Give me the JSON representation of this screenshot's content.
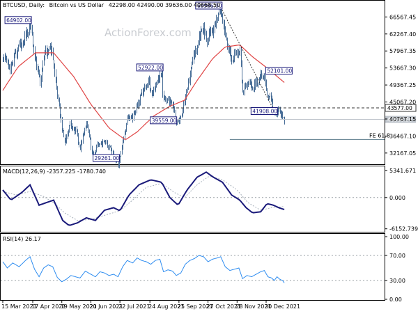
{
  "header": {
    "symbol": "BTCUSD, Daily:",
    "description": "Bitcoin vs US Dollar",
    "ohlc": "42298.00 42490.00 39636.00 40668.50"
  },
  "watermark": "ActionForex.com",
  "colors": {
    "bars": "#4a6f98",
    "moving_average": "#e04545",
    "macd_main": "#1a1a7a",
    "macd_signal": "#a9b2bd",
    "rsi": "#2d8cf0",
    "callout": "#1a1a7a",
    "fib_level": "#5a7a8a"
  },
  "chart_data": [
    {
      "type": "bar",
      "title": "BTCUSD, Daily: Bitcoin vs US Dollar 42298.00 42490.00 39636.00 40668.50",
      "x_ticks": [
        "15 Mar 2021",
        "17 Apr 2021",
        "19 May 2021",
        "20 Jun 2021",
        "22 Jul 2021",
        "24 Aug 2021",
        "25 Sep 2021",
        "27 Oct 2021",
        "28 Nov 2021",
        "30 Dec 2021"
      ],
      "y_ticks": [
        "66567.45",
        "62267.40",
        "57967.35",
        "53667.30",
        "49367.25",
        "45067.20",
        "40767.15",
        "36467.10",
        "32167.05"
      ],
      "ylim": [
        29500,
        70500
      ],
      "price_path": [
        [
          "15 Mar 2021",
          56000
        ],
        [
          "23 Mar 2021",
          54000
        ],
        [
          "01 Apr 2021",
          58500
        ],
        [
          "13 Apr 2021",
          63500
        ],
        [
          "14 Apr 2021",
          64902
        ],
        [
          "20 Apr 2021",
          55500
        ],
        [
          "25 Apr 2021",
          50000
        ],
        [
          "30 Apr 2021",
          57500
        ],
        [
          "08 May 2021",
          58500
        ],
        [
          "12 May 2021",
          50500
        ],
        [
          "19 May 2021",
          38500
        ],
        [
          "23 May 2021",
          34500
        ],
        [
          "27 May 2021",
          39500
        ],
        [
          "03 Jun 2021",
          38000
        ],
        [
          "08 Jun 2021",
          33500
        ],
        [
          "15 Jun 2021",
          40000
        ],
        [
          "22 Jun 2021",
          31500
        ],
        [
          "28 Jun 2021",
          34500
        ],
        [
          "05 Jul 2021",
          35000
        ],
        [
          "12 Jul 2021",
          33000
        ],
        [
          "20 Jul 2021",
          29261
        ],
        [
          "25 Jul 2021",
          35000
        ],
        [
          "31 Jul 2021",
          41500
        ],
        [
          "05 Aug 2021",
          41000
        ],
        [
          "14 Aug 2021",
          47000
        ],
        [
          "23 Aug 2021",
          50000
        ],
        [
          "26 Aug 2021",
          47000
        ],
        [
          "06 Sep 2021",
          52922
        ],
        [
          "07 Sep 2021",
          46500
        ],
        [
          "12 Sep 2021",
          46000
        ],
        [
          "20 Sep 2021",
          43000
        ],
        [
          "21 Sep 2021",
          39559
        ],
        [
          "28 Sep 2021",
          41500
        ],
        [
          "04 Oct 2021",
          48500
        ],
        [
          "10 Oct 2021",
          55500
        ],
        [
          "20 Oct 2021",
          64000
        ],
        [
          "26 Oct 2021",
          61000
        ],
        [
          "02 Nov 2021",
          63500
        ],
        [
          "10 Nov 2021",
          68986
        ],
        [
          "16 Nov 2021",
          60500
        ],
        [
          "22 Nov 2021",
          56000
        ],
        [
          "28 Nov 2021",
          57500
        ],
        [
          "01 Dec 2021",
          58000
        ],
        [
          "04 Dec 2021",
          48000
        ],
        [
          "09 Dec 2021",
          50000
        ],
        [
          "15 Dec 2021",
          48500
        ],
        [
          "23 Dec 2021",
          51500
        ],
        [
          "28 Dec 2021",
          52101
        ],
        [
          "31 Dec 2021",
          46500
        ],
        [
          "04 Jan 2022",
          46500
        ],
        [
          "06 Jan 2022",
          43000
        ],
        [
          "10 Jan 2022",
          41908
        ],
        [
          "12 Jan 2022",
          43500
        ],
        [
          "14 Jan 2022",
          42200
        ],
        [
          "17 Jan 2022",
          41800
        ],
        [
          "19 Jan 2022",
          40668.5
        ]
      ],
      "moving_average": [
        [
          "15 Mar 2021",
          48000
        ],
        [
          "01 Apr 2021",
          54000
        ],
        [
          "20 Apr 2021",
          57500
        ],
        [
          "10 May 2021",
          57500
        ],
        [
          "01 Jun 2021",
          51500
        ],
        [
          "20 Jun 2021",
          44500
        ],
        [
          "10 Jul 2021",
          38500
        ],
        [
          "28 Jul 2021",
          35500
        ],
        [
          "10 Aug 2021",
          37500
        ],
        [
          "28 Aug 2021",
          41500
        ],
        [
          "15 Sep 2021",
          44000
        ],
        [
          "01 Oct 2021",
          45500
        ],
        [
          "15 Oct 2021",
          50500
        ],
        [
          "01 Nov 2021",
          56000
        ],
        [
          "15 Nov 2021",
          59000
        ],
        [
          "01 Dec 2021",
          59500
        ],
        [
          "15 Dec 2021",
          56500
        ],
        [
          "01 Jan 2022",
          53500
        ],
        [
          "19 Jan 2022",
          50000
        ]
      ],
      "annotations": [
        {
          "label": "64902.00",
          "x": "14 Apr 2021",
          "y": 64902,
          "side": "left"
        },
        {
          "label": "29261.00",
          "x": "20 Jul 2021",
          "y": 29261,
          "side": "left"
        },
        {
          "label": "52922.00",
          "x": "06 Sep 2021",
          "y": 52922,
          "side": "left"
        },
        {
          "label": "39559.00",
          "x": "21 Sep 2021",
          "y": 39559,
          "side": "left"
        },
        {
          "label": "68986.00",
          "x": "10 Nov 2021",
          "y": 68986,
          "side": "left"
        },
        {
          "label": "41908.00",
          "x": "10 Jan 2022",
          "y": 41908,
          "side": "left"
        },
        {
          "label": "52101.00",
          "x": "28 Dec 2021",
          "y": 52101,
          "side": "right"
        }
      ],
      "horizontal_levels": [
        {
          "value": 43577.0,
          "label": "43577.00",
          "style": "dashed"
        },
        {
          "value": 40668.5,
          "label": "40668.50",
          "style": "solid"
        },
        {
          "value": 35600,
          "label": "FE 61.8",
          "style": "segment",
          "x_from": "20 Nov 2021"
        }
      ],
      "trendline": [
        [
          "10 Nov 2021",
          68986
        ],
        [
          "10 Jan 2022",
          41908
        ]
      ]
    },
    {
      "type": "line",
      "title": "MACD(12,26,9) -2357.225 -1780.740",
      "y_ticks": [
        "5341.671",
        "0.000",
        "-6152.739"
      ],
      "ylim": [
        -6600,
        6000
      ],
      "series": [
        {
          "values": [
            [
              "15 Mar 2021",
              1500
            ],
            [
              "24 Mar 2021",
              -500
            ],
            [
              "05 Apr 2021",
              1000
            ],
            [
              "14 Apr 2021",
              2500
            ],
            [
              "24 Apr 2021",
              -1500
            ],
            [
              "02 May 2021",
              -1000
            ],
            [
              "10 May 2021",
              -500
            ],
            [
              "20 May 2021",
              -4500
            ],
            [
              "27 May 2021",
              -5500
            ],
            [
              "05 Jun 2021",
              -5000
            ],
            [
              "15 Jun 2021",
              -4000
            ],
            [
              "25 Jun 2021",
              -4500
            ],
            [
              "05 Jul 2021",
              -2500
            ],
            [
              "15 Jul 2021",
              -2000
            ],
            [
              "22 Jul 2021",
              -2600
            ],
            [
              "01 Aug 2021",
              500
            ],
            [
              "12 Aug 2021",
              2500
            ],
            [
              "25 Aug 2021",
              3500
            ],
            [
              "06 Sep 2021",
              3000
            ],
            [
              "15 Sep 2021",
              0
            ],
            [
              "24 Sep 2021",
              -1500
            ],
            [
              "04 Oct 2021",
              1500
            ],
            [
              "15 Oct 2021",
              4000
            ],
            [
              "25 Oct 2021",
              5000
            ],
            [
              "02 Nov 2021",
              4000
            ],
            [
              "12 Nov 2021",
              3000
            ],
            [
              "22 Nov 2021",
              500
            ],
            [
              "01 Dec 2021",
              -500
            ],
            [
              "08 Dec 2021",
              -2000
            ],
            [
              "15 Dec 2021",
              -3000
            ],
            [
              "24 Dec 2021",
              -2800
            ],
            [
              "31 Dec 2021",
              -1200
            ],
            [
              "07 Jan 2022",
              -1500
            ],
            [
              "13 Jan 2022",
              -2000
            ],
            [
              "19 Jan 2022",
              -2357.225
            ]
          ]
        },
        {
          "values": [
            [
              "15 Mar 2021",
              1200
            ],
            [
              "30 Mar 2021",
              500
            ],
            [
              "14 Apr 2021",
              1200
            ],
            [
              "28 Apr 2021",
              300
            ],
            [
              "10 May 2021",
              -1000
            ],
            [
              "22 May 2021",
              -3000
            ],
            [
              "05 Jun 2021",
              -4500
            ],
            [
              "20 Jun 2021",
              -4300
            ],
            [
              "05 Jul 2021",
              -3500
            ],
            [
              "22 Jul 2021",
              -2600
            ],
            [
              "05 Aug 2021",
              -500
            ],
            [
              "20 Aug 2021",
              2000
            ],
            [
              "06 Sep 2021",
              2800
            ],
            [
              "20 Sep 2021",
              1000
            ],
            [
              "01 Oct 2021",
              0
            ],
            [
              "15 Oct 2021",
              2500
            ],
            [
              "28 Oct 2021",
              4200
            ],
            [
              "12 Nov 2021",
              3500
            ],
            [
              "28 Nov 2021",
              1500
            ],
            [
              "10 Dec 2021",
              -1000
            ],
            [
              "24 Dec 2021",
              -2500
            ],
            [
              "05 Jan 2022",
              -2000
            ],
            [
              "19 Jan 2022",
              -1780.74
            ]
          ]
        }
      ]
    },
    {
      "type": "line",
      "title": "RSI(14) 26.17",
      "y_ticks": [
        "100.00",
        "70.00",
        "30.00",
        "0.00"
      ],
      "ylim": [
        0,
        100
      ],
      "series": [
        {
          "values": [
            [
              "15 Mar 2021",
              60
            ],
            [
              "20 Mar 2021",
              50
            ],
            [
              "26 Mar 2021",
              58
            ],
            [
              "02 Apr 2021",
              52
            ],
            [
              "09 Apr 2021",
              62
            ],
            [
              "14 Apr 2021",
              68
            ],
            [
              "19 Apr 2021",
              48
            ],
            [
              "24 Apr 2021",
              36
            ],
            [
              "29 Apr 2021",
              50
            ],
            [
              "04 May 2021",
              55
            ],
            [
              "09 May 2021",
              52
            ],
            [
              "14 May 2021",
              35
            ],
            [
              "19 May 2021",
              28
            ],
            [
              "24 May 2021",
              32
            ],
            [
              "29 May 2021",
              38
            ],
            [
              "03 Jun 2021",
              36
            ],
            [
              "08 Jun 2021",
              34
            ],
            [
              "14 Jun 2021",
              45
            ],
            [
              "20 Jun 2021",
              40
            ],
            [
              "25 Jun 2021",
              36
            ],
            [
              "30 Jun 2021",
              44
            ],
            [
              "05 Jul 2021",
              42
            ],
            [
              "10 Jul 2021",
              38
            ],
            [
              "15 Jul 2021",
              40
            ],
            [
              "20 Jul 2021",
              36
            ],
            [
              "25 Jul 2021",
              52
            ],
            [
              "30 Jul 2021",
              62
            ],
            [
              "05 Aug 2021",
              58
            ],
            [
              "10 Aug 2021",
              66
            ],
            [
              "15 Aug 2021",
              62
            ],
            [
              "20 Aug 2021",
              60
            ],
            [
              "25 Aug 2021",
              56
            ],
            [
              "30 Aug 2021",
              62
            ],
            [
              "04 Sep 2021",
              64
            ],
            [
              "08 Sep 2021",
              44
            ],
            [
              "13 Sep 2021",
              47
            ],
            [
              "18 Sep 2021",
              45
            ],
            [
              "22 Sep 2021",
              38
            ],
            [
              "27 Sep 2021",
              42
            ],
            [
              "02 Oct 2021",
              56
            ],
            [
              "07 Oct 2021",
              62
            ],
            [
              "12 Oct 2021",
              65
            ],
            [
              "17 Oct 2021",
              70
            ],
            [
              "22 Oct 2021",
              68
            ],
            [
              "27 Oct 2021",
              60
            ],
            [
              "01 Nov 2021",
              64
            ],
            [
              "06 Nov 2021",
              66
            ],
            [
              "10 Nov 2021",
              68
            ],
            [
              "15 Nov 2021",
              52
            ],
            [
              "20 Nov 2021",
              46
            ],
            [
              "25 Nov 2021",
              48
            ],
            [
              "30 Nov 2021",
              50
            ],
            [
              "04 Dec 2021",
              33
            ],
            [
              "09 Dec 2021",
              38
            ],
            [
              "14 Dec 2021",
              36
            ],
            [
              "19 Dec 2021",
              40
            ],
            [
              "24 Dec 2021",
              44
            ],
            [
              "28 Dec 2021",
              46
            ],
            [
              "01 Jan 2022",
              36
            ],
            [
              "05 Jan 2022",
              34
            ],
            [
              "08 Jan 2022",
              30
            ],
            [
              "11 Jan 2022",
              36
            ],
            [
              "14 Jan 2022",
              32
            ],
            [
              "17 Jan 2022",
              30
            ],
            [
              "19 Jan 2022",
              26.17
            ]
          ]
        }
      ],
      "levels": [
        70,
        30
      ]
    }
  ]
}
